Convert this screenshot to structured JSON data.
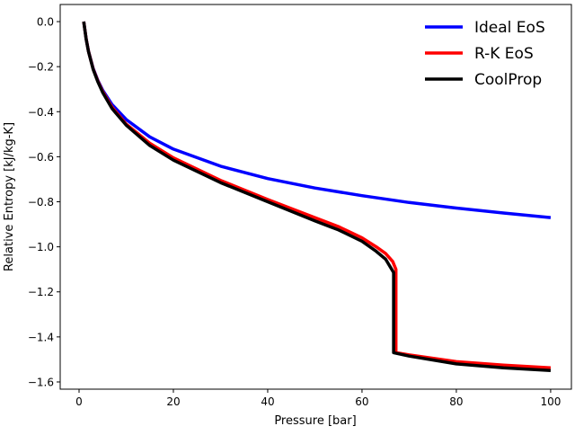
{
  "chart_data": {
    "type": "line",
    "title": "",
    "xlabel": "Pressure [bar]",
    "ylabel": "Relative Entropy [kJ/kg-K]",
    "xlim": [
      -4,
      104.4
    ],
    "ylim": [
      -1.632,
      0.076
    ],
    "xticks": [
      0,
      20,
      40,
      60,
      80,
      100
    ],
    "xtick_labels": [
      "0",
      "20",
      "40",
      "60",
      "80",
      "100"
    ],
    "yticks": [
      0.0,
      -0.2,
      -0.4,
      -0.6,
      -0.8,
      -1.0,
      -1.2,
      -1.4,
      -1.6
    ],
    "ytick_labels": [
      "0.0",
      "−0.2",
      "−0.4",
      "−0.6",
      "−0.8",
      "−1.0",
      "−1.2",
      "−1.4",
      "−1.6"
    ],
    "grid": false,
    "legend_position": "top-right",
    "series": [
      {
        "name": "Ideal EoS",
        "color": "#0000ff",
        "x": [
          1,
          1.5,
          2,
          3,
          4,
          5,
          7,
          10,
          15,
          20,
          30,
          40,
          50,
          60,
          70,
          80,
          90,
          100
        ],
        "y": [
          0,
          -0.077,
          -0.131,
          -0.208,
          -0.262,
          -0.304,
          -0.368,
          -0.435,
          -0.512,
          -0.566,
          -0.642,
          -0.697,
          -0.739,
          -0.773,
          -0.803,
          -0.828,
          -0.85,
          -0.87
        ]
      },
      {
        "name": "R-K EoS",
        "color": "#ff0000",
        "x": [
          1,
          1.5,
          2,
          3,
          4,
          5,
          7,
          10,
          15,
          20,
          30,
          40,
          50,
          55,
          60,
          63,
          65,
          66.5,
          67.2,
          67.2,
          70,
          80,
          90,
          100
        ],
        "y": [
          0,
          -0.077,
          -0.132,
          -0.21,
          -0.265,
          -0.31,
          -0.38,
          -0.455,
          -0.54,
          -0.605,
          -0.705,
          -0.79,
          -0.87,
          -0.91,
          -0.96,
          -1.0,
          -1.03,
          -1.065,
          -1.1,
          -1.47,
          -1.48,
          -1.51,
          -1.525,
          -1.537
        ]
      },
      {
        "name": "CoolProp",
        "color": "#000000",
        "x": [
          1,
          1.5,
          2,
          3,
          4,
          5,
          7,
          10,
          15,
          20,
          30,
          40,
          50,
          55,
          60,
          63,
          65,
          66.7,
          66.7,
          70,
          80,
          90,
          100
        ],
        "y": [
          0,
          -0.078,
          -0.133,
          -0.212,
          -0.268,
          -0.314,
          -0.386,
          -0.46,
          -0.55,
          -0.615,
          -0.715,
          -0.8,
          -0.885,
          -0.925,
          -0.975,
          -1.02,
          -1.055,
          -1.114,
          -1.47,
          -1.485,
          -1.52,
          -1.537,
          -1.549
        ]
      }
    ]
  }
}
